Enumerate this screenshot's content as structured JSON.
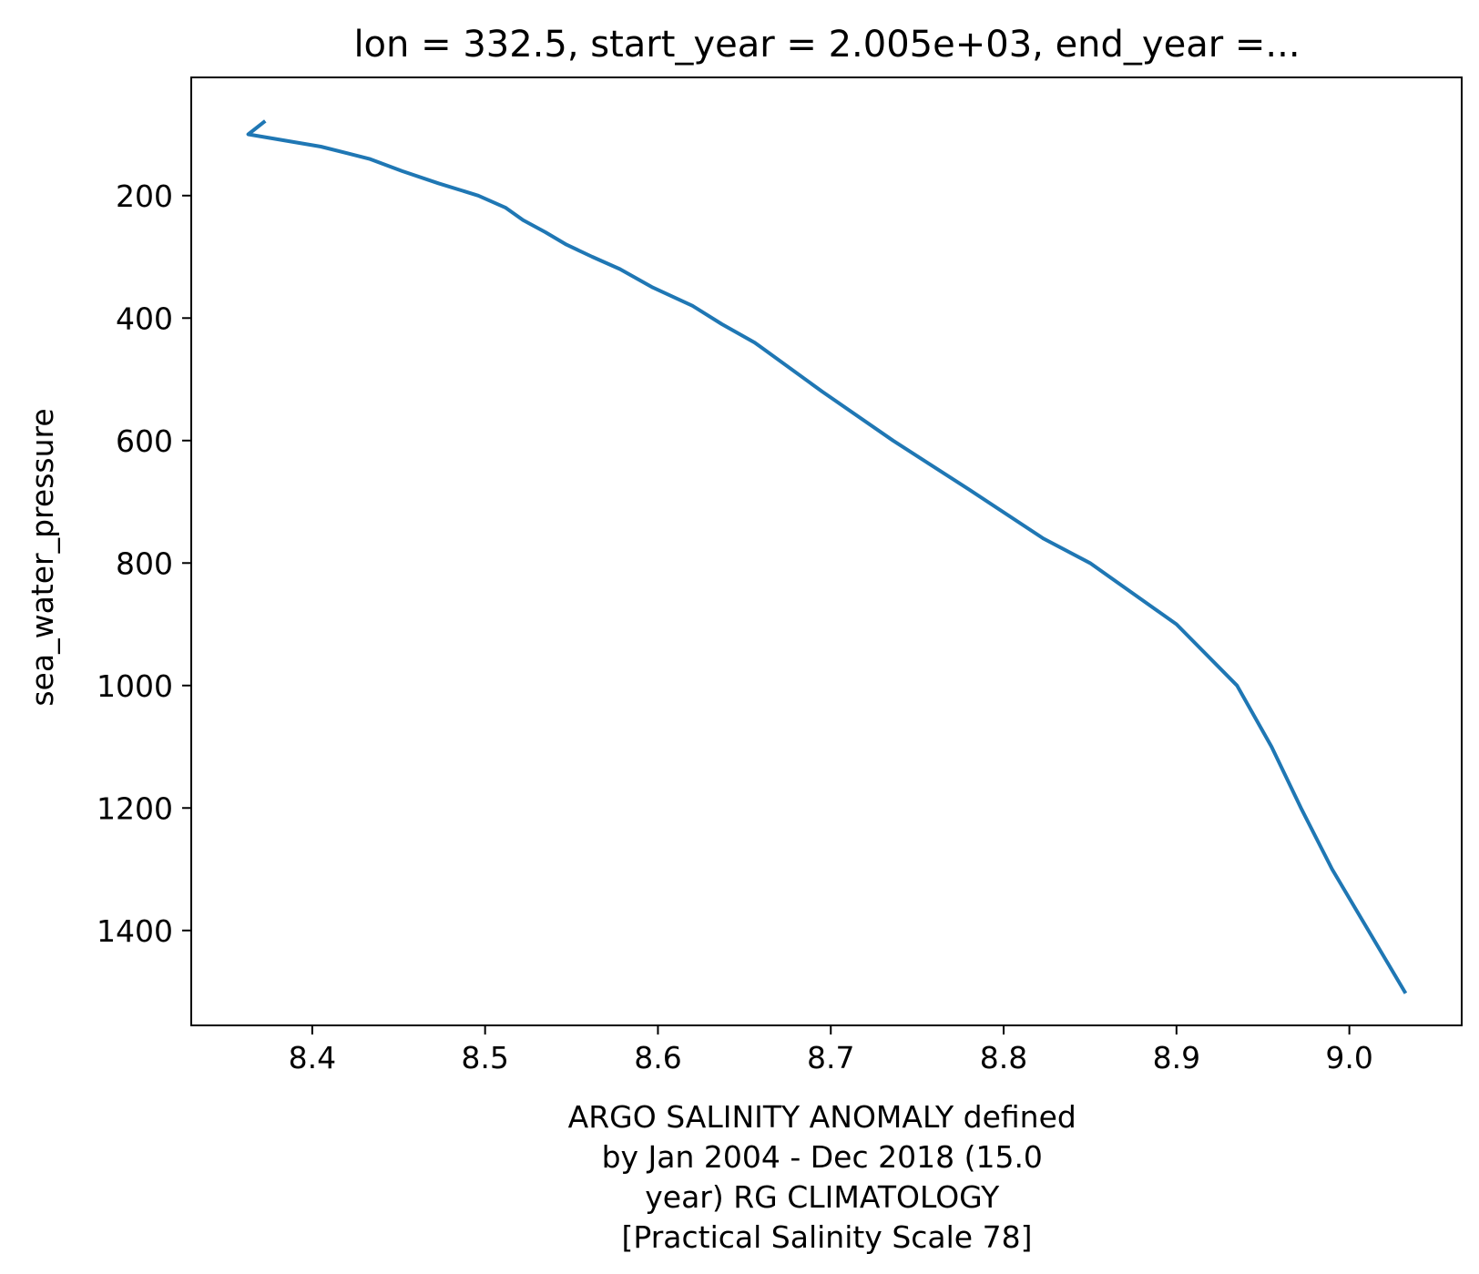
{
  "chart_data": {
    "type": "line",
    "title": "lon = 332.5, start_year = 2.005e+03, end_year =...",
    "xlabel": [
      "ARGO SALINITY ANOMALY defined",
      "by Jan 2004 - Dec 2018 (15.0",
      "year) RG CLIMATOLOGY",
      "[Practical Salinity Scale 78]"
    ],
    "ylabel": "sea_water_pressure",
    "xlim": [
      8.33,
      9.065
    ],
    "ylim": [
      1555,
      7
    ],
    "y_inverted": true,
    "grid": false,
    "xticks": [
      8.4,
      8.5,
      8.6,
      8.7,
      8.8,
      8.9,
      9.0
    ],
    "xtick_labels": [
      "8.4",
      "8.5",
      "8.6",
      "8.7",
      "8.8",
      "8.9",
      "9.0"
    ],
    "yticks": [
      200,
      400,
      600,
      800,
      1000,
      1200,
      1400
    ],
    "ytick_labels": [
      "200",
      "400",
      "600",
      "800",
      "1000",
      "1200",
      "1400"
    ],
    "series": [
      {
        "color": "#1f77b4",
        "x": [
          8.372,
          8.363,
          8.405,
          8.433,
          8.452,
          8.473,
          8.496,
          8.512,
          8.522,
          8.535,
          8.547,
          8.562,
          8.578,
          8.597,
          8.62,
          8.637,
          8.656,
          8.695,
          8.736,
          8.78,
          8.823,
          8.85,
          8.9,
          8.935,
          8.955,
          8.972,
          8.99,
          9.032
        ],
        "y": [
          80,
          100,
          120,
          140,
          160,
          180,
          200,
          220,
          240,
          260,
          280,
          300,
          320,
          350,
          380,
          410,
          440,
          520,
          600,
          680,
          760,
          800,
          900,
          1000,
          1100,
          1200,
          1300,
          1500
        ]
      }
    ]
  }
}
